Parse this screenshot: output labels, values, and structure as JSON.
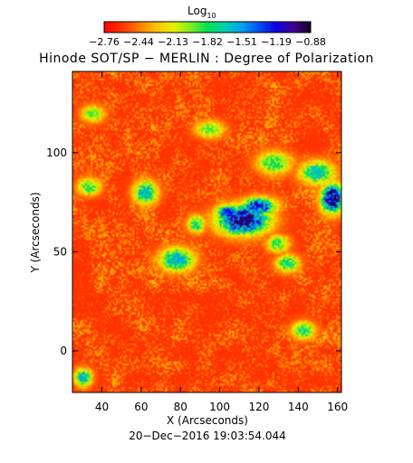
{
  "colorbar": {
    "label_main": "Log",
    "label_sub": "10",
    "ticks": [
      "−2.76",
      "−2.44",
      "−2.13",
      "−1.82",
      "−1.51",
      "−1.19",
      "−0.88"
    ],
    "min": -2.76,
    "max": -0.88,
    "palette": [
      "#ff0000",
      "#ff3000",
      "#ff7a00",
      "#ffc000",
      "#e8f000",
      "#80f020",
      "#00e050",
      "#00d0b0",
      "#00a0f0",
      "#0050f0",
      "#1000e0",
      "#400090",
      "#100020"
    ]
  },
  "footer": {
    "timestamp": "20−Dec−2016 19:03:54.044"
  },
  "chart_data": {
    "type": "heatmap",
    "title": "Hinode SOT/SP − MERLIN : Degree of Polarization",
    "xlabel": "X (Arcseconds)",
    "ylabel": "Y (Arcseconds)",
    "xlim": [
      25,
      162
    ],
    "ylim": [
      -21,
      141
    ],
    "x_ticks": [
      40,
      60,
      80,
      100,
      120,
      140,
      160
    ],
    "y_ticks": [
      0,
      50,
      100
    ],
    "background_level": -2.6,
    "structures": [
      {
        "x": 112,
        "y": 66,
        "sx": 9,
        "sy": 5,
        "peak": -0.95
      },
      {
        "x": 120,
        "y": 73,
        "sx": 6,
        "sy": 3,
        "peak": -1.15
      },
      {
        "x": 104,
        "y": 70,
        "sx": 4,
        "sy": 2.5,
        "peak": -1.2
      },
      {
        "x": 158,
        "y": 77,
        "sx": 4,
        "sy": 5,
        "peak": -0.9
      },
      {
        "x": 150,
        "y": 90,
        "sx": 6,
        "sy": 4,
        "peak": -1.6
      },
      {
        "x": 128,
        "y": 95,
        "sx": 6,
        "sy": 4,
        "peak": -1.8
      },
      {
        "x": 78,
        "y": 46,
        "sx": 6,
        "sy": 4,
        "peak": -1.5
      },
      {
        "x": 62,
        "y": 80,
        "sx": 4,
        "sy": 4,
        "peak": -1.5
      },
      {
        "x": 95,
        "y": 112,
        "sx": 5,
        "sy": 3,
        "peak": -1.9
      },
      {
        "x": 33,
        "y": 83,
        "sx": 4,
        "sy": 3,
        "peak": -1.8
      },
      {
        "x": 135,
        "y": 44,
        "sx": 4,
        "sy": 3,
        "peak": -1.7
      },
      {
        "x": 130,
        "y": 54,
        "sx": 4,
        "sy": 3,
        "peak": -1.8
      },
      {
        "x": 143,
        "y": 10,
        "sx": 4,
        "sy": 3,
        "peak": -1.7
      },
      {
        "x": 30,
        "y": -14,
        "sx": 3,
        "sy": 3,
        "peak": -1.5
      },
      {
        "x": 35,
        "y": 120,
        "sx": 4,
        "sy": 3,
        "peak": -1.9
      },
      {
        "x": 88,
        "y": 64,
        "sx": 3,
        "sy": 3,
        "peak": -1.7
      }
    ]
  }
}
